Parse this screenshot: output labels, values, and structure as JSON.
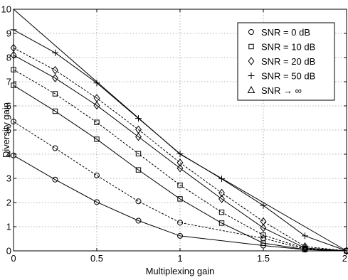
{
  "chart_data": {
    "type": "line",
    "title": "",
    "xlabel": "Multiplexing gain",
    "ylabel": "Diversity gain",
    "xlim": [
      0,
      2
    ],
    "ylim": [
      0,
      10
    ],
    "xticks": [
      0,
      0.5,
      1,
      1.5,
      2
    ],
    "yticks": [
      0,
      1,
      2,
      3,
      4,
      5,
      6,
      7,
      8,
      9,
      10
    ],
    "xtick_labels": [
      "0",
      "0.5",
      "1",
      "1.5",
      "2"
    ],
    "ytick_labels": [
      "0",
      "1",
      "2",
      "3",
      "4",
      "5",
      "6",
      "7",
      "8",
      "9",
      "10"
    ],
    "grid": true,
    "legend_position": "top-right",
    "legend": [
      {
        "label": "SNR = 0 dB",
        "marker": "circle"
      },
      {
        "label": "SNR = 10 dB",
        "marker": "square"
      },
      {
        "label": "SNR = 20 dB",
        "marker": "diamond"
      },
      {
        "label": "SNR = 50 dB",
        "marker": "plus"
      },
      {
        "label": "SNR → ∞",
        "marker": "triangle"
      }
    ],
    "series": [
      {
        "marker": "circle",
        "line": "solid",
        "x": [
          0,
          0.25,
          0.5,
          0.75,
          1,
          1.5,
          1.75,
          2
        ],
        "y": [
          3.95,
          2.95,
          2.02,
          1.25,
          0.62,
          0.22,
          0.05,
          0.0
        ]
      },
      {
        "marker": "circle",
        "line": "dashed",
        "x": [
          0,
          0.25,
          0.5,
          0.75,
          1,
          1.5,
          1.75,
          2
        ],
        "y": [
          5.35,
          4.25,
          3.12,
          2.05,
          1.17,
          0.52,
          0.08,
          0.0
        ]
      },
      {
        "marker": "square",
        "line": "solid",
        "x": [
          0,
          0.25,
          0.5,
          0.75,
          1,
          1.25,
          1.5,
          1.75,
          2
        ],
        "y": [
          6.85,
          5.78,
          4.62,
          3.35,
          2.15,
          1.15,
          0.32,
          0.06,
          0.0
        ]
      },
      {
        "marker": "square",
        "line": "dashed",
        "x": [
          0,
          0.25,
          0.5,
          0.75,
          1,
          1.25,
          1.5,
          1.75,
          2
        ],
        "y": [
          7.5,
          6.5,
          5.32,
          4.02,
          2.72,
          1.6,
          0.65,
          0.1,
          0.0
        ]
      },
      {
        "marker": "diamond",
        "line": "solid",
        "x": [
          0,
          0.25,
          0.5,
          0.75,
          1,
          1.25,
          1.5,
          1.75,
          2
        ],
        "y": [
          8.1,
          7.15,
          6.02,
          4.72,
          3.42,
          2.15,
          0.95,
          0.12,
          0.0
        ]
      },
      {
        "marker": "diamond",
        "line": "dashed",
        "x": [
          0,
          0.25,
          0.5,
          0.75,
          1,
          1.25,
          1.5,
          1.75,
          2
        ],
        "y": [
          8.4,
          7.48,
          6.32,
          5.02,
          3.65,
          2.4,
          1.22,
          0.18,
          0.0
        ]
      },
      {
        "marker": "plus",
        "line": "solid",
        "x": [
          0,
          0.25,
          0.5,
          0.75,
          1,
          1.25,
          1.5,
          1.75,
          2
        ],
        "y": [
          9.15,
          8.2,
          6.95,
          5.48,
          4.02,
          2.98,
          1.88,
          0.62,
          0.0
        ]
      },
      {
        "marker": "triangle",
        "line": "solid",
        "x": [
          0,
          1,
          2
        ],
        "y": [
          10,
          4,
          0
        ]
      }
    ]
  }
}
